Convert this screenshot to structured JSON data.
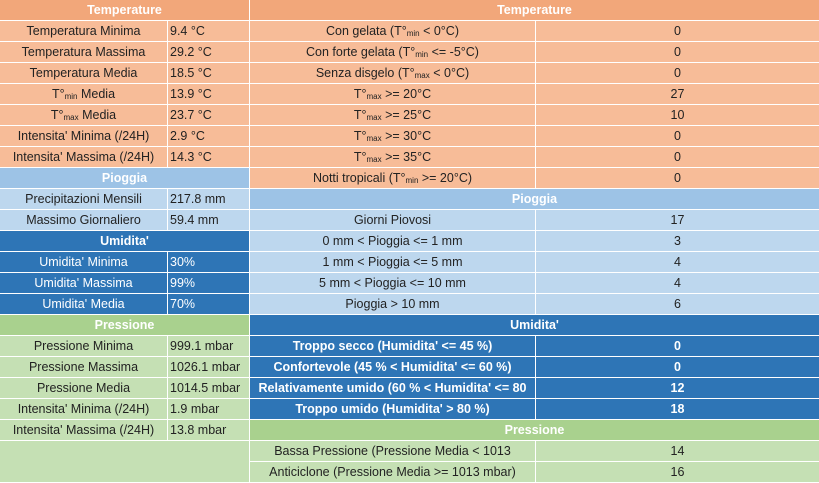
{
  "left": {
    "temperature_header": "Temperature",
    "temperature": [
      {
        "label": "Temperatura Minima",
        "value": "9.4 °C"
      },
      {
        "label": "Temperatura Massima",
        "value": "29.2 °C"
      },
      {
        "label": "Temperatura Media",
        "value": "18.5 °C"
      },
      {
        "label_pre": "T°",
        "label_sub": "min",
        "label_post": " Media",
        "value": "13.9 °C"
      },
      {
        "label_pre": "T°",
        "label_sub": "max",
        "label_post": " Media",
        "value": "23.7 °C"
      },
      {
        "label": "Intensita' Minima (/24H)",
        "value": "2.9 °C"
      },
      {
        "label": "Intensita' Massima (/24H)",
        "value": "14.3 °C"
      }
    ],
    "pioggia_header": "Pioggia",
    "pioggia": [
      {
        "label": "Precipitazioni Mensili",
        "value": "217.8 mm"
      },
      {
        "label": "Massimo Giornaliero",
        "value": "59.4 mm"
      }
    ],
    "umidita_header": "Umidita'",
    "umidita": [
      {
        "label": "Umidita' Minima",
        "value": "30%"
      },
      {
        "label": "Umidita' Massima",
        "value": "99%"
      },
      {
        "label": "Umidita' Media",
        "value": "70%"
      }
    ],
    "pressione_header": "Pressione",
    "pressione": [
      {
        "label": "Pressione Minima",
        "value": "999.1 mbar"
      },
      {
        "label": "Pressione Massima",
        "value": "1026.1 mbar"
      },
      {
        "label": "Pressione Media",
        "value": "1014.5 mbar"
      },
      {
        "label": "Intensita' Minima (/24H)",
        "value": "1.9 mbar"
      },
      {
        "label": "Intensita' Massima (/24H)",
        "value": "13.8 mbar"
      }
    ]
  },
  "right": {
    "temperature_header": "Temperature",
    "temperature": [
      {
        "pre": "Con gelata (T°",
        "sub": "min",
        "post": " < 0°C)",
        "value": "0"
      },
      {
        "pre": "Con forte gelata (T°",
        "sub": "min",
        "post": " <= -5°C)",
        "value": "0"
      },
      {
        "pre": "Senza disgelo (T°",
        "sub": "max",
        "post": " < 0°C)",
        "value": "0"
      },
      {
        "pre": "T°",
        "sub": "max",
        "post": " >= 20°C",
        "value": "27"
      },
      {
        "pre": "T°",
        "sub": "max",
        "post": " >= 25°C",
        "value": "10"
      },
      {
        "pre": "T°",
        "sub": "max",
        "post": " >= 30°C",
        "value": "0"
      },
      {
        "pre": "T°",
        "sub": "max",
        "post": " >= 35°C",
        "value": "0"
      },
      {
        "pre": "Notti tropicali (T°",
        "sub": "min",
        "post": " >= 20°C)",
        "value": "0"
      }
    ],
    "pioggia_header": "Pioggia",
    "pioggia": [
      {
        "label": "Giorni Piovosi",
        "value": "17"
      },
      {
        "label": "0 mm < Pioggia <= 1 mm",
        "value": "3"
      },
      {
        "label": "1 mm < Pioggia <= 5 mm",
        "value": "4"
      },
      {
        "label": "5 mm < Pioggia <= 10 mm",
        "value": "4"
      },
      {
        "label": "Pioggia > 10 mm",
        "value": "6"
      }
    ],
    "umidita_header": "Umidita'",
    "umidita": [
      {
        "label": "Troppo secco (Humidita' <= 45 %)",
        "value": "0"
      },
      {
        "label": "Confortevole (45 % < Humidita' <= 60 %)",
        "value": "0"
      },
      {
        "label": "Relativamente umido (60 % < Humidita' <= 80",
        "value": "12"
      },
      {
        "label": "Troppo umido (Humidita' > 80 %)",
        "value": "18"
      }
    ],
    "pressione_header": "Pressione",
    "pressione": [
      {
        "label": "Bassa Pressione (Pressione Media < 1013",
        "value": "14"
      },
      {
        "label": "Anticiclone (Pressione Media >= 1013 mbar)",
        "value": "16"
      }
    ]
  },
  "colors": {
    "temperature_header": "#f2a77a",
    "temperature_cells": "#f7bc98",
    "pioggia_header": "#9dc3e6",
    "pioggia_cells": "#bdd7ee",
    "umidita": "#2e75b6",
    "pressione_header": "#a9d18e",
    "pressione_cells": "#c5e0b4"
  }
}
